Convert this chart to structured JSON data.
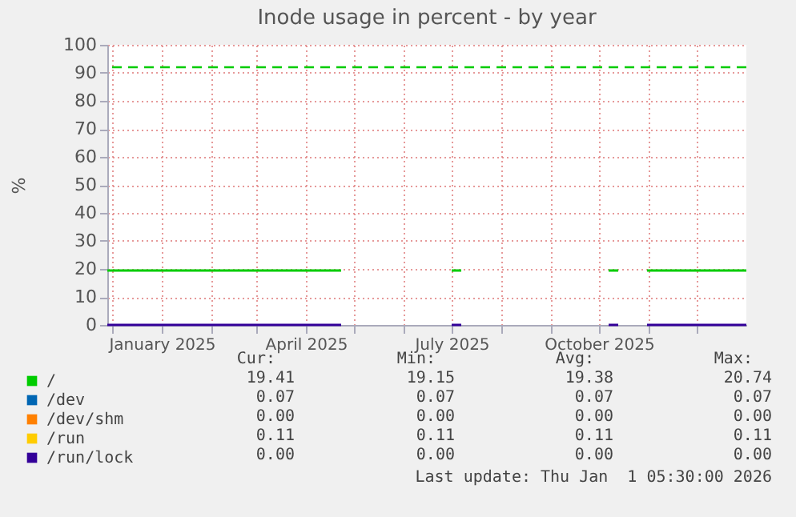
{
  "chart_data": {
    "type": "line",
    "title": "Inode usage in percent - by year",
    "ylabel": "%",
    "x": [
      "2024-11-28",
      "2025-04-23",
      "2025-04-24",
      "2025-07-01",
      "2025-07-07",
      "2025-07-08",
      "2025-10-07",
      "2025-10-13",
      "2025-10-14",
      "2025-10-31",
      "2026-01-01"
    ],
    "series": [
      {
        "name": "/",
        "color": "#00cc00",
        "values": [
          19.4,
          19.4,
          null,
          19.4,
          19.4,
          null,
          19.4,
          19.4,
          null,
          19.4,
          19.4
        ]
      },
      {
        "name": "/dev",
        "color": "#0066b3",
        "values": [
          null,
          null,
          null,
          null,
          null,
          null,
          null,
          null,
          null,
          null,
          null
        ]
      },
      {
        "name": "/dev/shm",
        "color": "#ff8000",
        "values": [
          null,
          null,
          null,
          null,
          null,
          null,
          null,
          null,
          null,
          null,
          null
        ]
      },
      {
        "name": "/run",
        "color": "#ffcc00",
        "values": [
          null,
          null,
          null,
          null,
          null,
          null,
          null,
          null,
          null,
          null,
          null
        ]
      },
      {
        "name": "/run/lock",
        "color": "#330099",
        "values": [
          0,
          0,
          null,
          0,
          0,
          null,
          0,
          0,
          null,
          0,
          0
        ]
      }
    ],
    "xlim": [
      "2024-11-28",
      "2026-01-01"
    ],
    "xticks": [
      {
        "value": "2024-12-01",
        "label": null
      },
      {
        "value": "2025-01-01",
        "label": "January 2025"
      },
      {
        "value": "2025-02-01",
        "label": null
      },
      {
        "value": "2025-03-01",
        "label": null
      },
      {
        "value": "2025-04-01",
        "label": "April 2025"
      },
      {
        "value": "2025-05-01",
        "label": null
      },
      {
        "value": "2025-06-01",
        "label": null
      },
      {
        "value": "2025-07-01",
        "label": "July 2025"
      },
      {
        "value": "2025-08-01",
        "label": null
      },
      {
        "value": "2025-09-01",
        "label": null
      },
      {
        "value": "2025-10-01",
        "label": "October 2025"
      },
      {
        "value": "2025-11-01",
        "label": null
      },
      {
        "value": "2025-12-01",
        "label": null
      }
    ],
    "ylim": [
      0,
      100
    ],
    "yticks": [
      0,
      10,
      20,
      30,
      40,
      50,
      60,
      70,
      80,
      90,
      100
    ],
    "grid": true,
    "legend": "bottom left",
    "marker": "none",
    "line_style": "solid",
    "ref_lines": [
      {
        "axis": "y",
        "value": 92,
        "color": "#00cc00",
        "line_style": "dashed"
      }
    ],
    "annotations": [
      "Cur:",
      "Min:",
      "Avg:",
      "Max:",
      "19.41",
      "19.15",
      "19.38",
      "20.74",
      "0.07",
      "0.07",
      "0.07",
      "0.07",
      "0.00",
      "0.00",
      "0.00",
      "0.00",
      "0.11",
      "0.11",
      "0.11",
      "0.11",
      "0.00",
      "0.00",
      "0.00",
      "0.00",
      "Last update: Thu Jan  1 05:30:00 2026"
    ]
  }
}
